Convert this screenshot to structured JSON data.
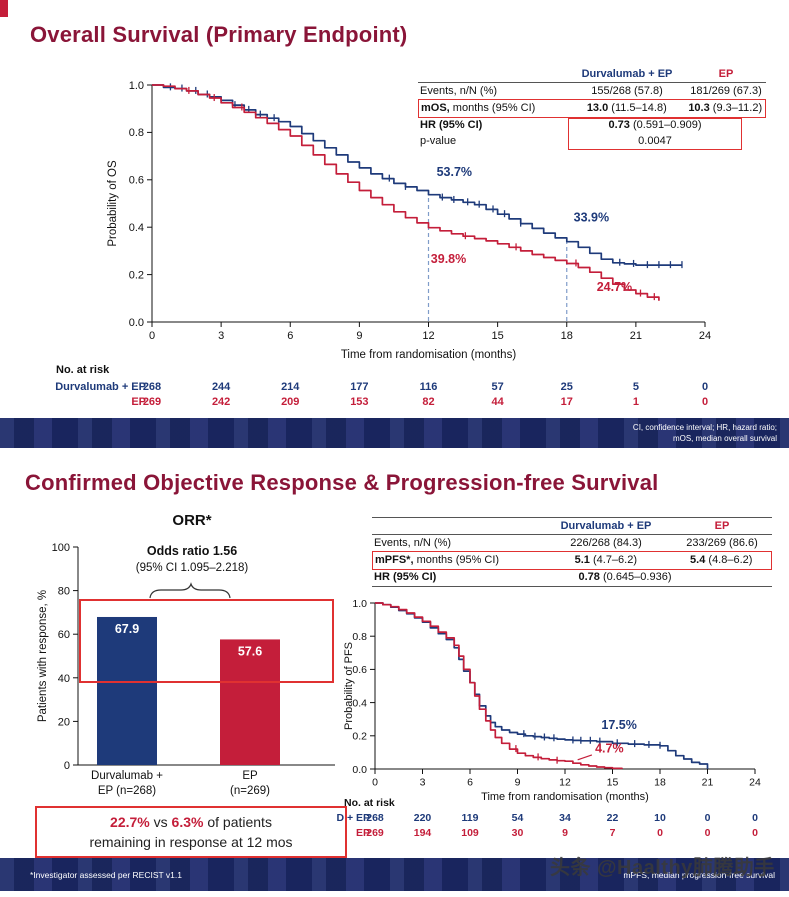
{
  "accent": {
    "blue": "#1e3a7a",
    "red": "#c41e3a",
    "title_maroon": "#8a1538",
    "box_red": "#e03131",
    "bar_navy": "#1d2b69",
    "dash_blue": "#7f9cc9"
  },
  "os": {
    "title": "Overall Survival (Primary Endpoint)",
    "stats": {
      "col1": "Durvalumab + EP",
      "col2": "EP",
      "events_label": "Events, n/N (%)",
      "events_1": "155/268 (57.8)",
      "events_2": "181/269 (67.3)",
      "mos_label_bold": "mOS,",
      "mos_label_rest": " months (95% CI)",
      "mos_1_bold": "13.0",
      "mos_1_rest": " (11.5–14.8)",
      "mos_2_bold": "10.3",
      "mos_2_rest": " (9.3–11.2)",
      "hr_label": "HR (95% CI)",
      "hr_bold": "0.73",
      "hr_rest": " (0.591–0.909)",
      "p_label": "p-value",
      "p_value": "0.0047"
    },
    "footer_line1": "CI, confidence interval; HR, hazard ratio;",
    "footer_line2": "mOS, median overall survival"
  },
  "orr": {
    "title": "Confirmed Objective Response & Progression-free Survival",
    "response_box": {
      "pct1": "22.7%",
      "vs": " vs ",
      "pct2": "6.3%",
      "rest1": " of patients",
      "line2": "remaining in response at 12 mos"
    },
    "footnote": "*Investigator assessed per RECIST v1.1",
    "footer_right": "mPFS, median progression-free survival"
  },
  "pfs": {
    "stats": {
      "col1": "Durvalumab + EP",
      "col2": "EP",
      "events_label": "Events, n/N (%)",
      "events_1": "226/268 (84.3)",
      "events_2": "233/269 (86.6)",
      "mpfs_label_bold": "mPFS*,",
      "mpfs_label_rest": " months (95% CI)",
      "mpfs_1_bold": "5.1",
      "mpfs_1_rest": " (4.7–6.2)",
      "mpfs_2_bold": "5.4",
      "mpfs_2_rest": " (4.8–6.2)",
      "hr_label": "HR (95% CI)",
      "hr_bold": "0.78",
      "hr_rest": " (0.645–0.936)"
    }
  },
  "watermark": "头条 @Haalthy肺腾助手",
  "chart_data": [
    {
      "type": "line",
      "name": "overall-survival-km",
      "xlabel": "Time from randomisation (months)",
      "ylabel": "Probability of OS",
      "xlim": [
        0,
        24
      ],
      "ylim": [
        0,
        1.0
      ],
      "xticks": [
        0,
        3,
        6,
        9,
        12,
        15,
        18,
        21,
        24
      ],
      "yticks": [
        0,
        0.2,
        0.4,
        0.6,
        0.8,
        1.0
      ],
      "dashed_lines": [
        {
          "x": 12,
          "y": 0.537
        },
        {
          "x": 18,
          "y": 0.339
        }
      ],
      "annotations": [
        {
          "text": "53.7%",
          "x": 12.35,
          "y": 0.615,
          "color": "#1e3a7a"
        },
        {
          "text": "33.9%",
          "x": 18.3,
          "y": 0.425,
          "color": "#1e3a7a"
        },
        {
          "text": "39.8%",
          "x": 12.1,
          "y": 0.25,
          "color": "#c41e3a"
        },
        {
          "text": "24.7%",
          "x": 19.3,
          "y": 0.13,
          "color": "#c41e3a"
        }
      ],
      "series": [
        {
          "name": "Durvalumab + EP",
          "color": "#1e3a7a",
          "points": [
            [
              0,
              1.0
            ],
            [
              0.5,
              0.99
            ],
            [
              1,
              0.985
            ],
            [
              1.5,
              0.975
            ],
            [
              2,
              0.96
            ],
            [
              2.5,
              0.95
            ],
            [
              3,
              0.935
            ],
            [
              3.5,
              0.915
            ],
            [
              4,
              0.895
            ],
            [
              4.5,
              0.875
            ],
            [
              5,
              0.86
            ],
            [
              5.5,
              0.845
            ],
            [
              6,
              0.825
            ],
            [
              6.5,
              0.795
            ],
            [
              7,
              0.765
            ],
            [
              7.5,
              0.735
            ],
            [
              8,
              0.705
            ],
            [
              8.5,
              0.675
            ],
            [
              9,
              0.65
            ],
            [
              9.5,
              0.625
            ],
            [
              10,
              0.605
            ],
            [
              10.5,
              0.585
            ],
            [
              11,
              0.57
            ],
            [
              11.5,
              0.555
            ],
            [
              12,
              0.537
            ],
            [
              12.5,
              0.525
            ],
            [
              13,
              0.515
            ],
            [
              13.5,
              0.505
            ],
            [
              14,
              0.495
            ],
            [
              14.5,
              0.475
            ],
            [
              15,
              0.455
            ],
            [
              15.5,
              0.435
            ],
            [
              16,
              0.415
            ],
            [
              16.5,
              0.395
            ],
            [
              17,
              0.375
            ],
            [
              17.5,
              0.355
            ],
            [
              18,
              0.339
            ],
            [
              18.5,
              0.315
            ],
            [
              19,
              0.29
            ],
            [
              19.5,
              0.265
            ],
            [
              20,
              0.25
            ],
            [
              20.5,
              0.245
            ],
            [
              21,
              0.24
            ],
            [
              22,
              0.24
            ],
            [
              23,
              0.24
            ]
          ],
          "censors": [
            0.8,
            1.3,
            1.9,
            2.4,
            3.0,
            3.6,
            4.2,
            4.7,
            5.3,
            10.3,
            11.0,
            12.6,
            13.1,
            13.7,
            14.2,
            14.8,
            15.3,
            16.0,
            20.3,
            20.9,
            21.5,
            22.0,
            22.5,
            23.0
          ]
        },
        {
          "name": "EP",
          "color": "#c41e3a",
          "points": [
            [
              0,
              1.0
            ],
            [
              0.5,
              0.995
            ],
            [
              1,
              0.985
            ],
            [
              1.5,
              0.975
            ],
            [
              2,
              0.96
            ],
            [
              2.5,
              0.945
            ],
            [
              3,
              0.925
            ],
            [
              3.5,
              0.905
            ],
            [
              4,
              0.885
            ],
            [
              4.5,
              0.862
            ],
            [
              5,
              0.838
            ],
            [
              5.5,
              0.812
            ],
            [
              6,
              0.785
            ],
            [
              6.5,
              0.745
            ],
            [
              7,
              0.705
            ],
            [
              7.5,
              0.665
            ],
            [
              8,
              0.625
            ],
            [
              8.5,
              0.59
            ],
            [
              9,
              0.555
            ],
            [
              9.5,
              0.525
            ],
            [
              10,
              0.495
            ],
            [
              10.5,
              0.465
            ],
            [
              11,
              0.44
            ],
            [
              11.5,
              0.418
            ],
            [
              12,
              0.398
            ],
            [
              12.5,
              0.385
            ],
            [
              13,
              0.372
            ],
            [
              13.5,
              0.362
            ],
            [
              14,
              0.352
            ],
            [
              14.5,
              0.342
            ],
            [
              15,
              0.33
            ],
            [
              15.5,
              0.315
            ],
            [
              16,
              0.3
            ],
            [
              16.5,
              0.285
            ],
            [
              17,
              0.272
            ],
            [
              17.5,
              0.26
            ],
            [
              18,
              0.247
            ],
            [
              18.5,
              0.23
            ],
            [
              19,
              0.21
            ],
            [
              19.5,
              0.185
            ],
            [
              20,
              0.16
            ],
            [
              20.5,
              0.135
            ],
            [
              21,
              0.12
            ],
            [
              21.5,
              0.105
            ],
            [
              22,
              0.09
            ]
          ],
          "censors": [
            1.6,
            2.7,
            3.9,
            13.6,
            15.8,
            18.4,
            21.2,
            21.8
          ]
        }
      ],
      "at_risk": {
        "title": "No. at risk",
        "rows": [
          {
            "label": "Durvalumab + EP",
            "color": "#1e3a7a",
            "values": [
              268,
              244,
              214,
              177,
              116,
              57,
              25,
              5,
              0
            ]
          },
          {
            "label": "EP",
            "color": "#c41e3a",
            "values": [
              269,
              242,
              209,
              153,
              82,
              44,
              17,
              1,
              0
            ]
          }
        ]
      }
    },
    {
      "type": "bar",
      "name": "orr-bar",
      "title": "ORR*",
      "subtitle1": "Odds ratio 1.56",
      "subtitle2": "(95% CI 1.095–2.218)",
      "ylabel": "Patients with response, %",
      "ylim": [
        0,
        100
      ],
      "yticks": [
        0,
        20,
        40,
        60,
        80,
        100
      ],
      "categories": [
        [
          "Durvalumab +",
          "EP (n=268)"
        ],
        [
          "EP",
          "(n=269)"
        ]
      ],
      "values": [
        67.9,
        57.6
      ],
      "colors": [
        "#1e3a7a",
        "#c41e3a"
      ]
    },
    {
      "type": "line",
      "name": "pfs-km",
      "xlabel": "Time from randomisation (months)",
      "ylabel": "Probability of PFS",
      "xlim": [
        0,
        24
      ],
      "ylim": [
        0,
        1.0
      ],
      "xticks": [
        0,
        3,
        6,
        9,
        12,
        15,
        18,
        21,
        24
      ],
      "yticks": [
        0,
        0.2,
        0.4,
        0.6,
        0.8,
        1.0
      ],
      "annotations": [
        {
          "text": "17.5%",
          "x": 14.3,
          "y": 0.24,
          "color": "#1e3a7a"
        },
        {
          "text": "4.7%",
          "x": 13.9,
          "y": 0.1,
          "color": "#c41e3a",
          "leader": [
            [
              13.7,
              0.085
            ],
            [
              12.8,
              0.055
            ]
          ]
        }
      ],
      "series": [
        {
          "name": "Durvalumab + EP",
          "color": "#1e3a7a",
          "points": [
            [
              0,
              1.0
            ],
            [
              0.5,
              0.99
            ],
            [
              1,
              0.975
            ],
            [
              1.5,
              0.955
            ],
            [
              2,
              0.935
            ],
            [
              2.5,
              0.91
            ],
            [
              3,
              0.885
            ],
            [
              3.5,
              0.85
            ],
            [
              4,
              0.815
            ],
            [
              4.5,
              0.78
            ],
            [
              5,
              0.73
            ],
            [
              5.3,
              0.66
            ],
            [
              5.6,
              0.59
            ],
            [
              6,
              0.52
            ],
            [
              6.3,
              0.45
            ],
            [
              6.6,
              0.38
            ],
            [
              7,
              0.32
            ],
            [
              7.3,
              0.28
            ],
            [
              7.6,
              0.255
            ],
            [
              8,
              0.235
            ],
            [
              8.5,
              0.22
            ],
            [
              9,
              0.21
            ],
            [
              9.5,
              0.2
            ],
            [
              10,
              0.195
            ],
            [
              10.5,
              0.19
            ],
            [
              11,
              0.185
            ],
            [
              11.5,
              0.18
            ],
            [
              12,
              0.175
            ],
            [
              12.5,
              0.172
            ],
            [
              13,
              0.17
            ],
            [
              14,
              0.165
            ],
            [
              15,
              0.155
            ],
            [
              16,
              0.15
            ],
            [
              17,
              0.145
            ],
            [
              18,
              0.14
            ],
            [
              18.5,
              0.11
            ],
            [
              19,
              0.08
            ],
            [
              19.5,
              0.06
            ],
            [
              20,
              0.04
            ],
            [
              20.5,
              0.03
            ],
            [
              21,
              0.0
            ]
          ],
          "censors": [
            9.4,
            10.1,
            10.7,
            11.3,
            12.5,
            13.0,
            13.6,
            14.2,
            15.3,
            16.4,
            17.3,
            18.0
          ]
        },
        {
          "name": "EP",
          "color": "#c41e3a",
          "points": [
            [
              0,
              1.0
            ],
            [
              0.5,
              0.99
            ],
            [
              1,
              0.978
            ],
            [
              1.5,
              0.96
            ],
            [
              2,
              0.94
            ],
            [
              2.5,
              0.915
            ],
            [
              3,
              0.89
            ],
            [
              3.5,
              0.86
            ],
            [
              4,
              0.825
            ],
            [
              4.5,
              0.79
            ],
            [
              5,
              0.745
            ],
            [
              5.3,
              0.68
            ],
            [
              5.6,
              0.6
            ],
            [
              6,
              0.52
            ],
            [
              6.3,
              0.44
            ],
            [
              6.6,
              0.36
            ],
            [
              7,
              0.29
            ],
            [
              7.3,
              0.235
            ],
            [
              7.6,
              0.19
            ],
            [
              8,
              0.155
            ],
            [
              8.5,
              0.12
            ],
            [
              9,
              0.095
            ],
            [
              9.5,
              0.08
            ],
            [
              10,
              0.07
            ],
            [
              10.5,
              0.062
            ],
            [
              11,
              0.055
            ],
            [
              11.5,
              0.05
            ],
            [
              12,
              0.047
            ],
            [
              12.5,
              0.035
            ],
            [
              13,
              0.025
            ],
            [
              13.5,
              0.018
            ],
            [
              14,
              0.012
            ],
            [
              14.5,
              0.008
            ],
            [
              15,
              0.004
            ],
            [
              15.6,
              0.0
            ]
          ],
          "censors": [
            8.9,
            10.3,
            11.5
          ]
        }
      ],
      "at_risk": {
        "title": "No. at risk",
        "rows": [
          {
            "label": "D + EP",
            "color": "#1e3a7a",
            "values": [
              268,
              220,
              119,
              54,
              34,
              22,
              10,
              0,
              0
            ]
          },
          {
            "label": "EP",
            "color": "#c41e3a",
            "values": [
              269,
              194,
              109,
              30,
              9,
              7,
              0,
              0,
              0
            ]
          }
        ]
      }
    }
  ]
}
